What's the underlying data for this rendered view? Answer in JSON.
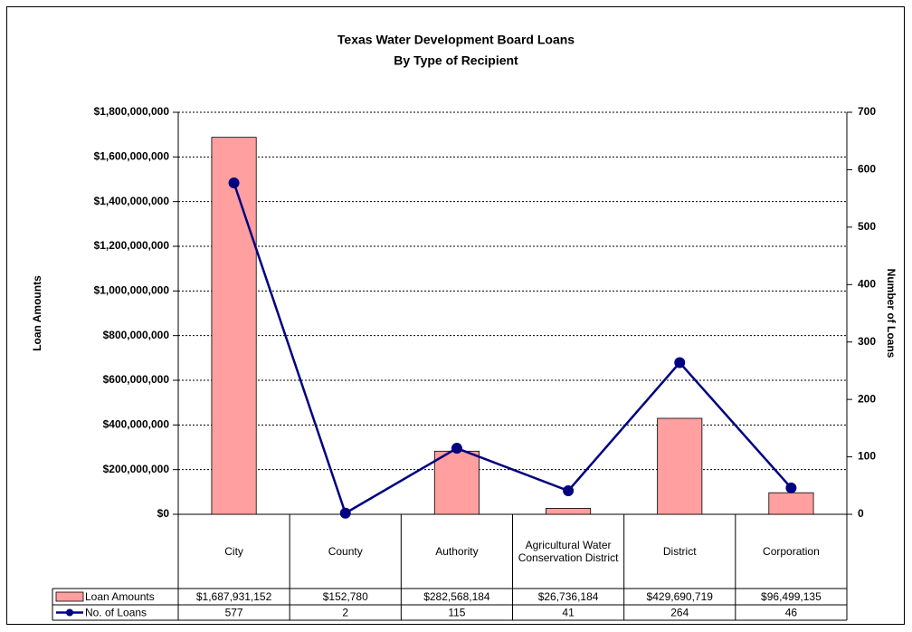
{
  "chart_data": {
    "type": "bar_line",
    "title": "Texas Water Development Board Loans",
    "subtitle": "By Type of Recipient",
    "ylabel": "Loan Amounts",
    "y2label": "Number of Loans",
    "categories": [
      "City",
      "County",
      "Authority",
      "Agricultural Water Conservation District",
      "District",
      "Corporation"
    ],
    "series": [
      {
        "name": "Loan Amounts",
        "type": "bar",
        "color": "#ff9f9f",
        "values": [
          1687931152,
          152780,
          282568184,
          26736184,
          429690719,
          96499135
        ],
        "value_labels": [
          "$1,687,931,152",
          "$152,780",
          "$282,568,184",
          "$26,736,184",
          "$429,690,719",
          "$96,499,135"
        ]
      },
      {
        "name": "No. of Loans",
        "type": "line",
        "axis": "y2",
        "color": "#000080",
        "values": [
          577,
          2,
          115,
          41,
          264,
          46
        ]
      }
    ],
    "ylim": [
      0,
      1800000000
    ],
    "yticks": [
      {
        "value": 0,
        "label": "$0"
      },
      {
        "value": 200000000,
        "label": "$200,000,000"
      },
      {
        "value": 400000000,
        "label": "$400,000,000"
      },
      {
        "value": 600000000,
        "label": "$600,000,000"
      },
      {
        "value": 800000000,
        "label": "$800,000,000"
      },
      {
        "value": 1000000000,
        "label": "$1,000,000,000"
      },
      {
        "value": 1200000000,
        "label": "$1,200,000,000"
      },
      {
        "value": 1400000000,
        "label": "$1,400,000,000"
      },
      {
        "value": 1600000000,
        "label": "$1,600,000,000"
      },
      {
        "value": 1800000000,
        "label": "$1,800,000,000"
      }
    ],
    "y2lim": [
      0,
      700
    ],
    "y2ticks": [
      0,
      100,
      200,
      300,
      400,
      500,
      600,
      700
    ],
    "grid": true
  }
}
